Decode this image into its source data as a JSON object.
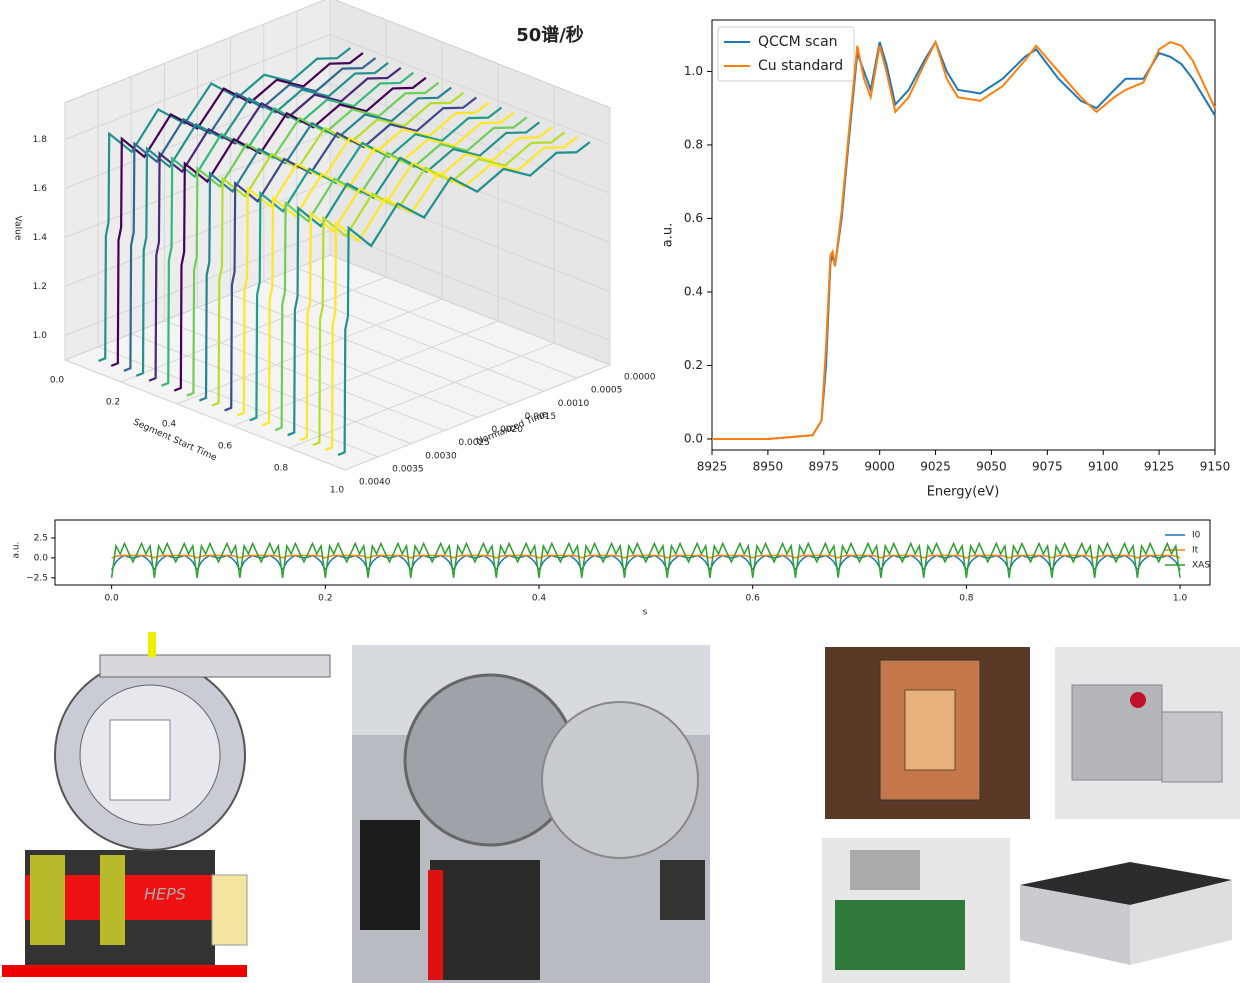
{
  "chart_data": [
    {
      "type": "line3d",
      "title": "50谱/秒",
      "xlabel": "Segment Start Time",
      "ylabel": "Normalized Time",
      "zlabel": "Value",
      "xlim": [
        0,
        1
      ],
      "ylim": [
        0,
        0.004
      ],
      "zlim": [
        0.9,
        1.95
      ],
      "xticks": [
        {
          "value": 0,
          "label": "0.0"
        },
        0.2,
        0.4,
        0.6,
        0.8,
        {
          "value": 1,
          "label": "1.0"
        }
      ],
      "yticks": [
        {
          "value": 0,
          "label": "0.0000"
        },
        0.0005,
        {
          "value": 0.001,
          "label": "0.0010"
        },
        0.0015,
        {
          "value": 0.002,
          "label": "0.0020"
        },
        0.0025,
        {
          "value": 0.003,
          "label": "0.0030"
        },
        0.0035,
        {
          "value": 0.004,
          "label": "0.0040"
        }
      ],
      "zticks": [
        {
          "value": 1,
          "label": "1.0"
        },
        1.2,
        1.4,
        1.6,
        1.8
      ],
      "profile": {
        "y": [
          0.004,
          0.0039,
          0.00389,
          0.00385,
          0.00384,
          0.0035,
          0.0031,
          0.0027,
          0.0023,
          0.0019,
          0.0015,
          0.0011,
          0.0007,
          0.0004,
          0.0002
        ],
        "values": [
          0.95,
          0.95,
          1.45,
          1.5,
          1.86,
          1.75,
          1.88,
          1.78,
          1.9,
          1.8,
          1.85,
          1.78,
          1.83,
          1.8,
          1.82
        ]
      },
      "series": [
        {
          "x": 0.12,
          "color": "#21918c"
        },
        {
          "x": 0.165,
          "color": "#440154"
        },
        {
          "x": 0.21,
          "color": "#31688e"
        },
        {
          "x": 0.255,
          "color": "#21918c"
        },
        {
          "x": 0.3,
          "color": "#482878"
        },
        {
          "x": 0.345,
          "color": "#35b779"
        },
        {
          "x": 0.39,
          "color": "#440154"
        },
        {
          "x": 0.435,
          "color": "#6ece58"
        },
        {
          "x": 0.48,
          "color": "#26828e"
        },
        {
          "x": 0.525,
          "color": "#b5de2b"
        },
        {
          "x": 0.57,
          "color": "#3e4989"
        },
        {
          "x": 0.615,
          "color": "#fde725"
        },
        {
          "x": 0.66,
          "color": "#1f9e89"
        },
        {
          "x": 0.705,
          "color": "#fde725"
        },
        {
          "x": 0.75,
          "color": "#6ece58"
        },
        {
          "x": 0.795,
          "color": "#21918c"
        },
        {
          "x": 0.84,
          "color": "#fde725"
        },
        {
          "x": 0.885,
          "color": "#b5de2b"
        },
        {
          "x": 0.93,
          "color": "#fde725"
        },
        {
          "x": 0.975,
          "color": "#21918c"
        }
      ]
    },
    {
      "type": "line",
      "xlabel": "Energy(eV)",
      "ylabel": "a.u.",
      "legend": "upper left",
      "xlim": [
        8925,
        9150
      ],
      "ylim": [
        -0.03,
        1.14
      ],
      "xticks": [
        8925,
        8950,
        8975,
        9000,
        9025,
        9050,
        9075,
        9100,
        9125,
        9150
      ],
      "yticks": [
        {
          "value": 0,
          "label": "0.0"
        },
        0.2,
        0.4,
        0.6,
        0.8,
        {
          "value": 1,
          "label": "1.0"
        }
      ],
      "x": [
        8925,
        8950,
        8970,
        8974,
        8976,
        8978,
        8979,
        8980,
        8983,
        8986,
        8990,
        8993,
        8996,
        9000,
        9003,
        9007,
        9013,
        9020,
        9025,
        9030,
        9035,
        9045,
        9055,
        9065,
        9070,
        9080,
        9090,
        9097,
        9105,
        9110,
        9118,
        9125,
        9130,
        9135,
        9140,
        9150
      ],
      "series": [
        {
          "name": "QCCM scan",
          "color": "#1f77b4",
          "values": [
            0,
            0,
            0.01,
            0.05,
            0.2,
            0.48,
            0.5,
            0.47,
            0.6,
            0.8,
            1.05,
            1.0,
            0.95,
            1.08,
            1.02,
            0.91,
            0.95,
            1.03,
            1.08,
            1.0,
            0.95,
            0.94,
            0.98,
            1.04,
            1.06,
            0.98,
            0.92,
            0.9,
            0.95,
            0.98,
            0.98,
            1.05,
            1.04,
            1.02,
            0.98,
            0.88
          ]
        },
        {
          "name": "Cu standard",
          "color": "#ff7f0e",
          "values": [
            0,
            0,
            0.01,
            0.05,
            0.25,
            0.5,
            0.51,
            0.47,
            0.62,
            0.82,
            1.07,
            0.98,
            0.93,
            1.07,
            1.0,
            0.89,
            0.93,
            1.02,
            1.08,
            0.98,
            0.93,
            0.92,
            0.96,
            1.03,
            1.07,
            1.0,
            0.93,
            0.89,
            0.93,
            0.95,
            0.97,
            1.06,
            1.08,
            1.07,
            1.03,
            0.9
          ]
        }
      ]
    },
    {
      "type": "periodic",
      "xlabel": "s",
      "ylabel": "a.u.",
      "legend": "right",
      "xlim": [
        -0.053,
        1.028
      ],
      "ylim": [
        -3.4,
        4.75
      ],
      "xticks": [
        {
          "value": 0,
          "label": "0.0"
        },
        0.2,
        0.4,
        0.6,
        0.8,
        {
          "value": 1,
          "label": "1.0"
        }
      ],
      "yticks": [
        {
          "value": -2.5,
          "label": "−2.5"
        },
        {
          "value": 0,
          "label": "0.0"
        },
        2.5
      ],
      "period": 0.04,
      "cycles": 25,
      "phase": [
        0,
        0.004,
        0.008,
        0.012,
        0.016,
        0.02,
        0.024,
        0.028,
        0.032,
        0.036,
        0.04
      ],
      "series": [
        {
          "name": "I0",
          "color": "#1f77b4",
          "values": [
            -1.5,
            -0.5,
            0,
            0.3,
            0.1,
            0,
            0.1,
            0.3,
            0,
            -0.5,
            -1.5
          ]
        },
        {
          "name": "It",
          "color": "#ff7f0e",
          "values": [
            0,
            0.2,
            0.3,
            0.3,
            0.3,
            0.3,
            0.3,
            0.3,
            0.3,
            0.2,
            0
          ]
        },
        {
          "name": "XAS",
          "color": "#2ca02c",
          "values": [
            -2.5,
            1.5,
            0.5,
            1.8,
            0.6,
            -0.5,
            0.6,
            1.8,
            0.5,
            1.5,
            -2.5
          ]
        }
      ]
    }
  ],
  "photos": {
    "heps_label": "HEPS"
  }
}
